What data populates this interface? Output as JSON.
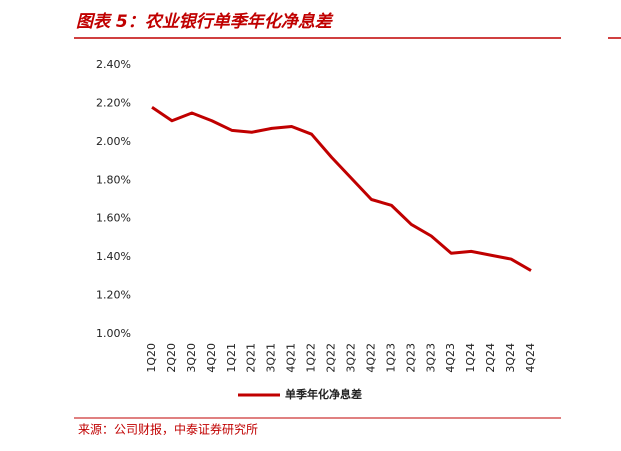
{
  "chart_data": {
    "type": "line",
    "title": "图表 5：农业银行单季年化净息差",
    "source": "来源：公司财报，中泰证券研究所",
    "categories": [
      "1Q20",
      "2Q20",
      "3Q20",
      "4Q20",
      "1Q21",
      "2Q21",
      "3Q21",
      "4Q21",
      "1Q22",
      "2Q22",
      "3Q22",
      "4Q22",
      "1Q23",
      "2Q23",
      "3Q23",
      "4Q23",
      "1Q24",
      "2Q24",
      "3Q24",
      "4Q24"
    ],
    "series": [
      {
        "name": "单季年化净息差",
        "color": "#c00000",
        "values": [
          2.18,
          2.11,
          2.15,
          2.11,
          2.06,
          2.05,
          2.07,
          2.08,
          2.04,
          1.92,
          1.81,
          1.7,
          1.67,
          1.57,
          1.51,
          1.42,
          1.43,
          1.41,
          1.39,
          1.33
        ]
      }
    ],
    "ylim": [
      1.0,
      2.4
    ],
    "yticks": [
      {
        "value": 1.0,
        "label": "1.00%"
      },
      {
        "value": 1.2,
        "label": "1.20%"
      },
      {
        "value": 1.4,
        "label": "1.40%"
      },
      {
        "value": 1.6,
        "label": "1.60%"
      },
      {
        "value": 1.8,
        "label": "1.80%"
      },
      {
        "value": 2.0,
        "label": "2.00%"
      },
      {
        "value": 2.2,
        "label": "2.20%"
      },
      {
        "value": 2.4,
        "label": "2.40%"
      }
    ]
  }
}
